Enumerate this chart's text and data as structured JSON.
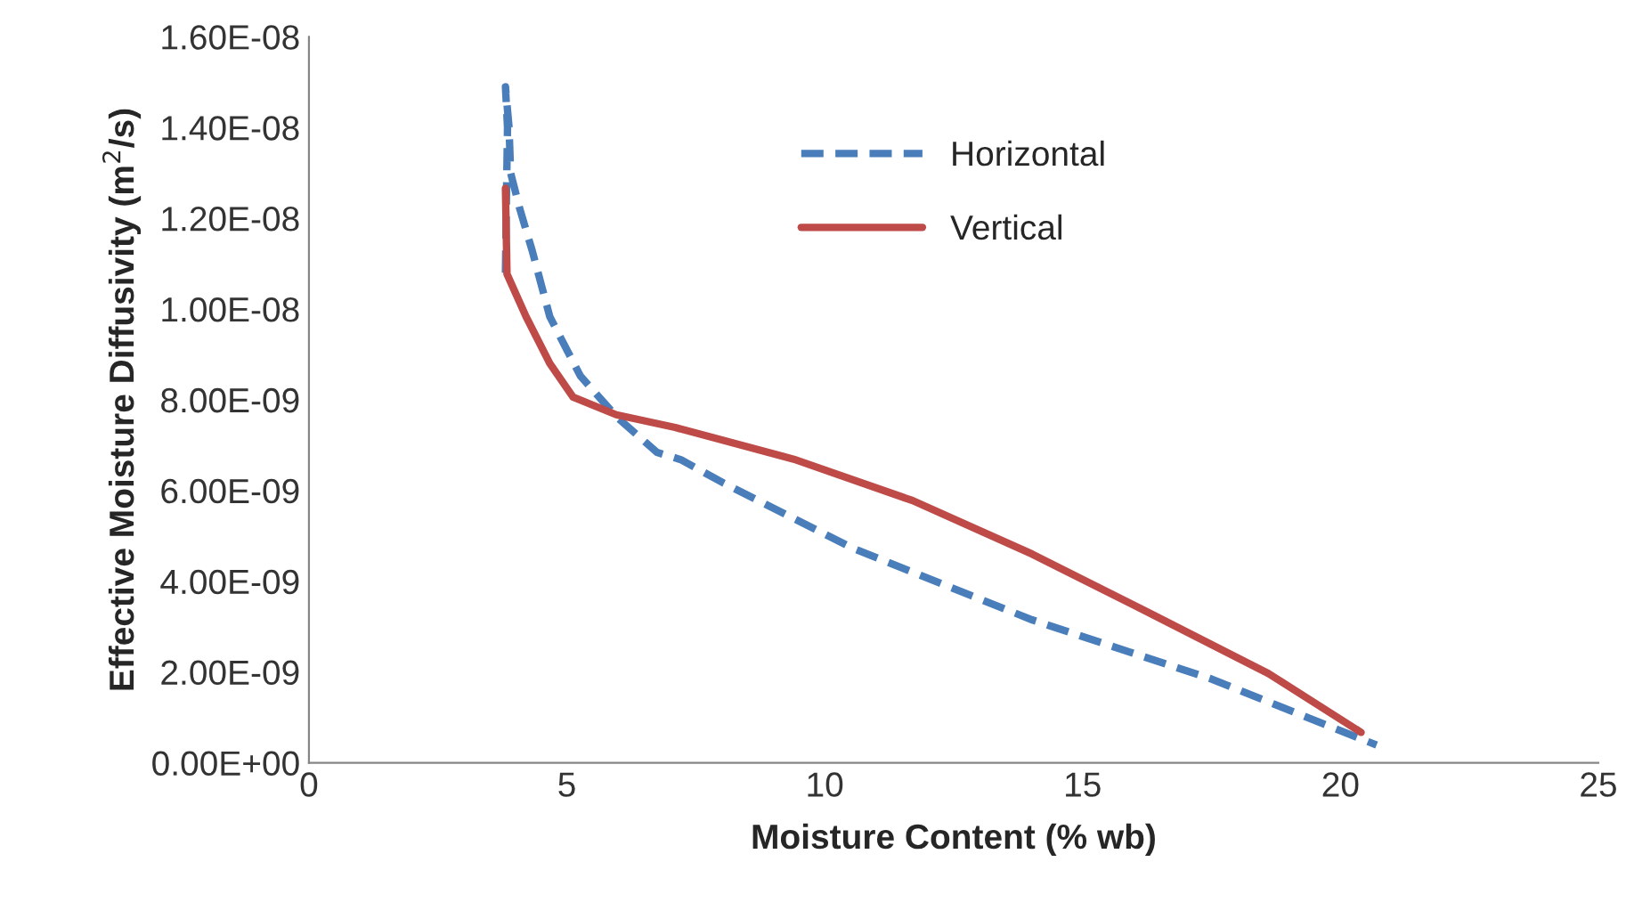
{
  "chart_data": {
    "type": "line",
    "xlabel": "Moisture Content (% wb)",
    "ylabel": "Effective Moisture Diffusivity (m$^{2}$/s)",
    "xlim": [
      0,
      25
    ],
    "xticks": [
      0,
      5,
      10,
      15,
      20,
      25
    ],
    "ylim": [
      0,
      1.6e-08
    ],
    "yticks": [
      {
        "value": 0,
        "label": "0.00E+00"
      },
      {
        "value": 2e-09,
        "label": "2.00E-09"
      },
      {
        "value": 4e-09,
        "label": "4.00E-09"
      },
      {
        "value": 6e-09,
        "label": "6.00E-09"
      },
      {
        "value": 8e-09,
        "label": "8.00E-09"
      },
      {
        "value": 1e-08,
        "label": "1.00E-08"
      },
      {
        "value": 1.2e-08,
        "label": "1.20E-08"
      },
      {
        "value": 1.4e-08,
        "label": "1.40E-08"
      },
      {
        "value": 1.6e-08,
        "label": "1.60E-08"
      }
    ],
    "grid": false,
    "legend": "top",
    "marker": "none",
    "series": [
      {
        "name": "Horizontal",
        "color": "#4a7ebb",
        "line_style": "dashed",
        "x": [
          3.81,
          3.83,
          3.85,
          3.81,
          3.88,
          3.91,
          4.09,
          4.33,
          4.67,
          5.26,
          5.96,
          6.75,
          7.21,
          8.03,
          10.56,
          14.02,
          17.49,
          20.7
        ],
        "values": [
          1.08e-08,
          1.25e-08,
          1.4e-08,
          1.49e-08,
          1.4e-08,
          1.3e-08,
          1.22e-08,
          1.128e-08,
          9.83e-09,
          8.53e-09,
          7.63e-09,
          6.84e-09,
          6.68e-09,
          6.17e-09,
          4.72e-09,
          3.15e-09,
          1.85e-09,
          3.9e-10
        ]
      },
      {
        "name": "Vertical",
        "color": "#be4b48",
        "line_style": "solid",
        "x": [
          3.81,
          3.84,
          4.21,
          4.67,
          5.12,
          5.96,
          7.1,
          9.4,
          11.7,
          14.02,
          16.3,
          18.6,
          20.4
        ],
        "values": [
          1.266e-08,
          1.077e-08,
          9.83e-09,
          8.8e-09,
          8.06e-09,
          7.67e-09,
          7.39e-09,
          6.69e-09,
          5.78e-09,
          4.6e-09,
          3.3e-09,
          1.97e-09,
          6.7e-10
        ]
      }
    ]
  }
}
